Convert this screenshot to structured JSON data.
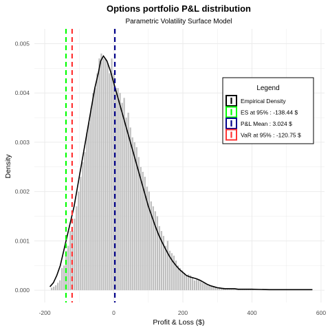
{
  "chart_data": {
    "type": "bar",
    "title": "Options portfolio P&L distribution",
    "subtitle": "Parametric Volatility Surface Model",
    "xlabel": "Profit & Loss ($)",
    "ylabel": "Density",
    "xlim": [
      -230,
      610
    ],
    "ylim": [
      -0.00025,
      0.0053
    ],
    "x_ticks": [
      -200,
      0,
      200,
      400,
      600
    ],
    "x_tick_labels": [
      "-200",
      "0",
      "200",
      "400",
      "600"
    ],
    "y_ticks": [
      0,
      0.001,
      0.002,
      0.003,
      0.004,
      0.005
    ],
    "y_tick_labels": [
      "0.000",
      "0.001",
      "0.002",
      "0.003",
      "0.004",
      "0.005"
    ],
    "grid": true,
    "legend_position": "right",
    "histogram": {
      "color": "#bebebe",
      "bin_width": 6,
      "x": [
        -180,
        -174,
        -168,
        -162,
        -156,
        -150,
        -144,
        -138,
        -132,
        -126,
        -120,
        -114,
        -108,
        -102,
        -96,
        -90,
        -84,
        -78,
        -72,
        -66,
        -60,
        -54,
        -48,
        -42,
        -36,
        -30,
        -24,
        -18,
        -12,
        -6,
        0,
        6,
        12,
        18,
        24,
        30,
        36,
        42,
        48,
        54,
        60,
        66,
        72,
        78,
        84,
        90,
        96,
        102,
        108,
        114,
        120,
        126,
        132,
        138,
        144,
        150,
        156,
        162,
        168,
        174,
        180,
        186,
        192,
        198,
        204,
        210,
        216,
        222,
        228,
        234,
        240,
        246,
        252,
        258,
        264,
        270,
        276,
        282,
        288,
        294,
        300,
        306,
        312,
        318,
        324,
        330,
        336,
        342,
        348,
        354,
        360,
        366,
        372,
        378,
        384,
        390,
        396,
        402
      ],
      "density": [
        5e-05,
        7e-05,
        0.0001,
        0.00015,
        0.0002,
        0.00045,
        0.0005,
        0.0008,
        0.0009,
        0.0012,
        0.0012,
        0.00145,
        0.0017,
        0.002,
        0.0023,
        0.0026,
        0.0028,
        0.0032,
        0.0034,
        0.0037,
        0.004,
        0.0041,
        0.0044,
        0.0047,
        0.0048,
        0.0047,
        0.0047,
        0.0046,
        0.0044,
        0.0047,
        0.0044,
        0.0041,
        0.0041,
        0.004,
        0.0038,
        0.0039,
        0.0035,
        0.0036,
        0.0033,
        0.0031,
        0.003,
        0.0029,
        0.0027,
        0.0025,
        0.0024,
        0.0023,
        0.0021,
        0.002,
        0.0018,
        0.0017,
        0.0016,
        0.0015,
        0.0013,
        0.0012,
        0.0011,
        0.0009,
        0.001,
        0.0008,
        0.00075,
        0.0007,
        0.0006,
        0.0005,
        0.00045,
        0.0004,
        0.00035,
        0.0003,
        0.00032,
        0.0003,
        0.00025,
        0.0002,
        0.00022,
        0.0002,
        0.00018,
        0.00015,
        0.00015,
        0.00012,
        0.0001,
        8e-05,
        8e-05,
        7e-05,
        6e-05,
        6e-05,
        5e-05,
        5e-05,
        4e-05,
        4e-05,
        3e-05,
        3e-05,
        3e-05,
        2e-05,
        2e-05,
        2e-05,
        2e-05,
        2e-05,
        2e-05,
        1e-05,
        1e-05,
        1e-05
      ]
    },
    "density_curve": {
      "name": "Empirical Density",
      "color": "#000000",
      "x": [
        -185,
        -175,
        -165,
        -155,
        -145,
        -135,
        -125,
        -115,
        -105,
        -95,
        -85,
        -75,
        -65,
        -55,
        -45,
        -38,
        -30,
        -20,
        -10,
        0,
        10,
        20,
        30,
        40,
        50,
        60,
        70,
        80,
        90,
        100,
        110,
        120,
        130,
        140,
        150,
        160,
        170,
        180,
        190,
        200,
        210,
        220,
        230,
        240,
        250,
        260,
        270,
        280,
        290,
        300,
        310,
        320,
        330,
        340,
        350,
        360,
        380,
        400,
        420,
        450,
        500,
        540,
        575
      ],
      "y": [
        7e-05,
        0.00015,
        0.0003,
        0.0005,
        0.0008,
        0.0011,
        0.0014,
        0.0017,
        0.0021,
        0.0025,
        0.0029,
        0.0033,
        0.0037,
        0.0041,
        0.0044,
        0.00465,
        0.00475,
        0.00465,
        0.00445,
        0.0042,
        0.00395,
        0.0037,
        0.00345,
        0.0032,
        0.00295,
        0.0027,
        0.00245,
        0.0022,
        0.00195,
        0.0017,
        0.0015,
        0.0013,
        0.00112,
        0.00097,
        0.00083,
        0.0007,
        0.00059,
        0.0005,
        0.00042,
        0.00036,
        0.0003,
        0.00027,
        0.00025,
        0.00023,
        0.0002,
        0.00016,
        0.00012,
        9e-05,
        7e-05,
        5e-05,
        4e-05,
        3e-05,
        3e-05,
        3e-05,
        3e-05,
        2e-05,
        2e-05,
        2e-05,
        1.5e-05,
        1e-05,
        1e-05,
        1e-05,
        1e-05
      ]
    },
    "vlines": [
      {
        "name": "ES at 95% : -138.44 $",
        "x": -138.44,
        "color": "#00ff00"
      },
      {
        "name": "P&L Mean : 3.024 $",
        "x": 3.024,
        "color": "#00008b"
      },
      {
        "name": "VaR at 95% : -120.75 $",
        "x": -120.75,
        "color": "#ff3333"
      }
    ],
    "legend": {
      "title": "Legend",
      "entries": [
        {
          "label": "Empirical Density",
          "color": "#000000"
        },
        {
          "label": "ES at 95% : -138.44 $",
          "color": "#00ff00"
        },
        {
          "label": "P&L Mean : 3.024 $",
          "color": "#00008b"
        },
        {
          "label": "VaR at 95% : -120.75 $",
          "color": "#ff3333"
        }
      ]
    }
  }
}
